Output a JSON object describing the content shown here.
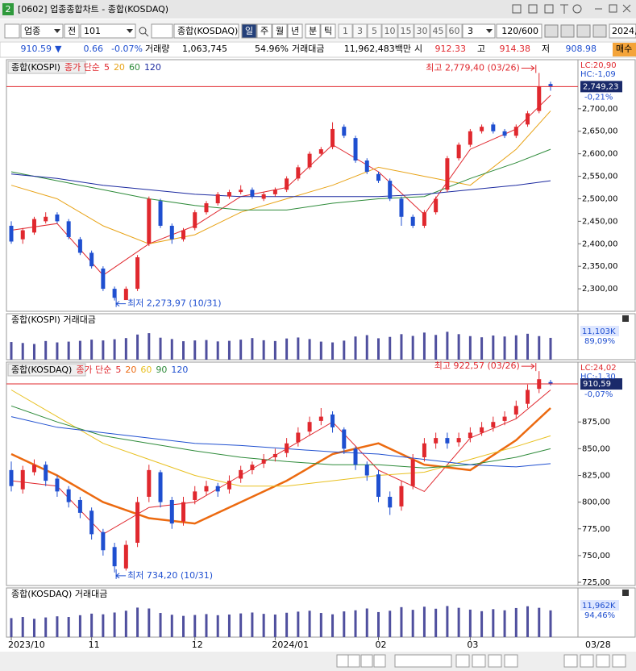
{
  "window": {
    "badge": "2",
    "title": "[0602] 업종종합차트 - 종합(KOSDAQ)"
  },
  "toolbar": {
    "market": "업종",
    "prefix": "전",
    "code": "101",
    "name": "종합(KOSDAQ)",
    "periods": [
      "일",
      "주",
      "월",
      "년",
      "분",
      "틱"
    ],
    "intervals": [
      "1",
      "3",
      "5",
      "10",
      "15",
      "30",
      "45",
      "60"
    ],
    "count": "3",
    "range": "120/600",
    "date": "2024,"
  },
  "quote": {
    "price": "910.59",
    "arrow": "▼",
    "change": "0.66",
    "pct": "-0.07%",
    "vol_label": "거래량",
    "volume": "1,063,745",
    "vol_ratio": "54.96%",
    "amount_label": "거래대금",
    "amount": "11,962,483백만",
    "open_label": "시",
    "open": "912.33",
    "high_label": "고",
    "high": "914.38",
    "low_label": "저",
    "low": "908.98",
    "buy": "매수"
  },
  "chart_data": [
    {
      "type": "candlestick",
      "title": "종합(KOSPI)",
      "legend_label": "종가 단순",
      "up_color": "#e0282e",
      "down_color": "#1f4fd0",
      "ylim": [
        2250,
        2809
      ],
      "yticks": [
        {
          "value": 2300,
          "label": "2,300,00"
        },
        {
          "value": 2350,
          "label": "2,350,00"
        },
        {
          "value": 2400,
          "label": "2,400,00"
        },
        {
          "value": 2450,
          "label": "2,450,00"
        },
        {
          "value": 2500,
          "label": "2,500,00"
        },
        {
          "value": 2550,
          "label": "2,550,00"
        },
        {
          "value": 2600,
          "label": "2,600,00"
        },
        {
          "value": 2650,
          "label": "2,650,00"
        },
        {
          "value": 2700,
          "label": "2,700,00"
        }
      ],
      "ohlc": {
        "open": [
          2440,
          2410,
          2425,
          2450,
          2465,
          2450,
          2410,
          2380,
          2345,
          2300,
          2275,
          2300,
          2400,
          2495,
          2440,
          2410,
          2435,
          2470,
          2490,
          2505,
          2515,
          2520,
          2500,
          2510,
          2520,
          2545,
          2570,
          2600,
          2615,
          2660,
          2635,
          2585,
          2555,
          2540,
          2500,
          2460,
          2440,
          2470,
          2520,
          2590,
          2620,
          2650,
          2665,
          2650,
          2640,
          2665,
          2695,
          2755
        ],
        "high": [
          2450,
          2435,
          2460,
          2470,
          2470,
          2455,
          2415,
          2385,
          2350,
          2305,
          2305,
          2375,
          2505,
          2500,
          2445,
          2435,
          2475,
          2495,
          2515,
          2520,
          2530,
          2525,
          2515,
          2525,
          2550,
          2575,
          2605,
          2615,
          2670,
          2665,
          2640,
          2590,
          2560,
          2545,
          2505,
          2465,
          2475,
          2505,
          2595,
          2625,
          2655,
          2665,
          2670,
          2655,
          2665,
          2695,
          2779.4,
          2760
        ],
        "low": [
          2400,
          2400,
          2420,
          2445,
          2445,
          2410,
          2375,
          2345,
          2295,
          2273.97,
          2280,
          2295,
          2395,
          2435,
          2400,
          2405,
          2430,
          2465,
          2485,
          2500,
          2510,
          2500,
          2495,
          2505,
          2515,
          2540,
          2565,
          2595,
          2610,
          2635,
          2580,
          2555,
          2535,
          2495,
          2440,
          2435,
          2435,
          2465,
          2515,
          2585,
          2615,
          2645,
          2645,
          2635,
          2635,
          2660,
          2690,
          2740
        ],
        "close": [
          2405,
          2430,
          2455,
          2460,
          2450,
          2415,
          2380,
          2350,
          2300,
          2280,
          2300,
          2370,
          2500,
          2440,
          2410,
          2430,
          2470,
          2490,
          2510,
          2515,
          2520,
          2505,
          2510,
          2520,
          2545,
          2570,
          2600,
          2610,
          2655,
          2640,
          2585,
          2560,
          2540,
          2500,
          2460,
          2440,
          2470,
          2500,
          2590,
          2620,
          2650,
          2660,
          2650,
          2640,
          2660,
          2690,
          2750,
          2749.23
        ]
      },
      "ma": [
        {
          "name": "5",
          "color": "#e0282e",
          "x": [
            0,
            4,
            8,
            12,
            16,
            20,
            24,
            28,
            32,
            36,
            40,
            44,
            47
          ],
          "values": [
            2430,
            2445,
            2330,
            2400,
            2440,
            2505,
            2525,
            2620,
            2560,
            2465,
            2610,
            2655,
            2730
          ]
        },
        {
          "name": "20",
          "color": "#e8a317",
          "x": [
            0,
            4,
            8,
            12,
            16,
            20,
            24,
            28,
            32,
            36,
            40,
            44,
            47
          ],
          "values": [
            2530,
            2500,
            2440,
            2400,
            2420,
            2470,
            2500,
            2530,
            2570,
            2550,
            2530,
            2610,
            2695
          ]
        },
        {
          "name": "60",
          "color": "#2e8b3a",
          "x": [
            0,
            4,
            8,
            12,
            16,
            20,
            24,
            28,
            32,
            36,
            40,
            44,
            47
          ],
          "values": [
            2560,
            2540,
            2520,
            2500,
            2485,
            2475,
            2475,
            2490,
            2500,
            2505,
            2545,
            2580,
            2610
          ]
        },
        {
          "name": "120",
          "color": "#1c2aa0",
          "x": [
            0,
            4,
            8,
            12,
            16,
            20,
            24,
            28,
            32,
            36,
            40,
            44,
            47
          ],
          "values": [
            2555,
            2545,
            2530,
            2520,
            2510,
            2505,
            2505,
            2505,
            2505,
            2510,
            2520,
            2530,
            2540
          ]
        }
      ],
      "high_label": "최고 2,779,40 (03/26)",
      "low_label": "최저 2,273,97 (10/31)",
      "lc": "LC:20,90",
      "hc": "HC:-1,09",
      "last_label": "2,749,23",
      "change_label": "-0,21%"
    },
    {
      "type": "volume",
      "title": "종합(KOSPI) 거래대금",
      "color": "#4f4f9e",
      "ylim": [
        0,
        16000
      ],
      "values": [
        9000,
        8500,
        8000,
        9500,
        8800,
        9200,
        9600,
        10200,
        9800,
        10400,
        11000,
        12800,
        13500,
        11200,
        10500,
        9400,
        9800,
        10000,
        9300,
        9600,
        10200,
        11000,
        9900,
        9500,
        10800,
        11300,
        10500,
        9200,
        8800,
        9700,
        11800,
        12500,
        10900,
        11600,
        13000,
        12100,
        13800,
        12600,
        14200,
        13000,
        12000,
        11400,
        12300,
        11800,
        12400,
        13200,
        12000,
        11103
      ],
      "last_label": "11,103K",
      "ratio_label": "89,09%"
    },
    {
      "type": "candlestick",
      "title": "종합(KOSDAQ)",
      "legend_label": "종가 단순",
      "up_color": "#e0282e",
      "down_color": "#1f4fd0",
      "ylim": [
        722,
        931
      ],
      "yticks": [
        {
          "value": 725,
          "label": "725,00"
        },
        {
          "value": 750,
          "label": "750,00"
        },
        {
          "value": 775,
          "label": "775,00"
        },
        {
          "value": 800,
          "label": "800,00"
        },
        {
          "value": 825,
          "label": "825,00"
        },
        {
          "value": 850,
          "label": "850,00"
        },
        {
          "value": 875,
          "label": "875,00"
        }
      ],
      "ohlc": {
        "open": [
          830,
          812,
          828,
          835,
          822,
          812,
          802,
          792,
          772,
          758,
          738,
          762,
          805,
          828,
          802,
          782,
          802,
          810,
          815,
          812,
          822,
          830,
          836,
          842,
          846,
          856,
          866,
          876,
          882,
          868,
          850,
          835,
          826,
          805,
          796,
          815,
          842,
          855,
          860,
          856,
          860,
          865,
          870,
          876,
          882,
          892,
          906,
          912.33
        ],
        "high": [
          838,
          834,
          840,
          838,
          825,
          815,
          805,
          795,
          775,
          762,
          764,
          805,
          835,
          830,
          805,
          805,
          815,
          820,
          818,
          825,
          834,
          838,
          845,
          850,
          860,
          870,
          880,
          888,
          885,
          870,
          852,
          838,
          830,
          810,
          820,
          845,
          860,
          865,
          865,
          865,
          870,
          875,
          880,
          885,
          895,
          910,
          922.57,
          914.38
        ],
        "low": [
          810,
          808,
          825,
          815,
          805,
          795,
          785,
          765,
          750,
          734.2,
          736,
          758,
          800,
          795,
          775,
          778,
          798,
          806,
          805,
          808,
          818,
          826,
          832,
          838,
          842,
          852,
          862,
          872,
          865,
          845,
          830,
          820,
          800,
          788,
          792,
          812,
          838,
          850,
          850,
          852,
          856,
          862,
          866,
          872,
          878,
          888,
          902,
          908.98
        ],
        "close": [
          815,
          830,
          835,
          820,
          810,
          800,
          790,
          770,
          755,
          740,
          760,
          800,
          830,
          800,
          780,
          800,
          810,
          815,
          810,
          820,
          830,
          835,
          840,
          845,
          855,
          865,
          875,
          880,
          870,
          850,
          835,
          825,
          805,
          795,
          815,
          840,
          855,
          860,
          855,
          860,
          865,
          870,
          875,
          880,
          890,
          905,
          915,
          910.59
        ]
      },
      "ma": [
        {
          "name": "5",
          "color": "#e0282e",
          "width": 1,
          "x": [
            0,
            4,
            8,
            12,
            16,
            20,
            24,
            28,
            32,
            36,
            40,
            44,
            47
          ],
          "values": [
            820,
            815,
            770,
            795,
            800,
            825,
            850,
            875,
            830,
            810,
            860,
            878,
            905
          ]
        },
        {
          "name": "20",
          "color": "#ec6a10",
          "width": 2.5,
          "x": [
            0,
            4,
            8,
            12,
            16,
            20,
            24,
            28,
            32,
            36,
            40,
            44,
            47
          ],
          "values": [
            845,
            825,
            800,
            785,
            780,
            800,
            820,
            845,
            855,
            835,
            830,
            858,
            888
          ]
        },
        {
          "name": "60",
          "color": "#e8c020",
          "width": 1,
          "x": [
            0,
            4,
            8,
            12,
            16,
            20,
            24,
            28,
            32,
            36,
            40,
            44,
            47
          ],
          "values": [
            905,
            880,
            855,
            840,
            825,
            815,
            815,
            820,
            825,
            828,
            840,
            852,
            862
          ]
        },
        {
          "name": "90",
          "color": "#2e8b3a",
          "width": 1,
          "x": [
            0,
            4,
            8,
            12,
            16,
            20,
            24,
            28,
            32,
            36,
            40,
            44,
            47
          ],
          "values": [
            890,
            875,
            862,
            855,
            848,
            842,
            838,
            835,
            835,
            832,
            835,
            842,
            850
          ]
        },
        {
          "name": "120",
          "color": "#2050d0",
          "width": 1,
          "x": [
            0,
            4,
            8,
            12,
            16,
            20,
            24,
            28,
            32,
            36,
            40,
            44,
            47
          ],
          "values": [
            880,
            870,
            865,
            860,
            855,
            853,
            850,
            847,
            845,
            840,
            835,
            833,
            836
          ]
        }
      ],
      "high_label": "최고 922,57 (03/26)",
      "low_label": "최저 734,20 (10/31)",
      "lc": "LC:24,02",
      "hc": "HC:-1,30",
      "last_label": "910,59",
      "change_label": "-0,07%"
    },
    {
      "type": "volume",
      "title": "종합(KOSDAQ) 거래대금",
      "color": "#4f4f9e",
      "ylim": [
        0,
        15500
      ],
      "values": [
        8500,
        9000,
        8200,
        8800,
        9300,
        9000,
        9800,
        10500,
        10200,
        11000,
        11800,
        13200,
        12800,
        10800,
        10000,
        9500,
        9900,
        10300,
        9800,
        10100,
        10600,
        11000,
        10400,
        10100,
        10900,
        11400,
        11800,
        10800,
        10200,
        11500,
        12000,
        12800,
        11200,
        11800,
        13400,
        12200,
        13600,
        12700,
        13900,
        13100,
        12300,
        11600,
        12500,
        12000,
        13000,
        13800,
        13100,
        11962
      ],
      "last_label": "11,962K",
      "ratio_label": "94,46%",
      "xticks": [
        {
          "value": 0,
          "label": "2023/10"
        },
        {
          "value": 7,
          "label": "11"
        },
        {
          "value": 16,
          "label": "12"
        },
        {
          "value": 23,
          "label": "2024/01"
        },
        {
          "value": 32,
          "label": "02"
        },
        {
          "value": 40,
          "label": "03"
        }
      ],
      "last_date": "03/28"
    }
  ]
}
